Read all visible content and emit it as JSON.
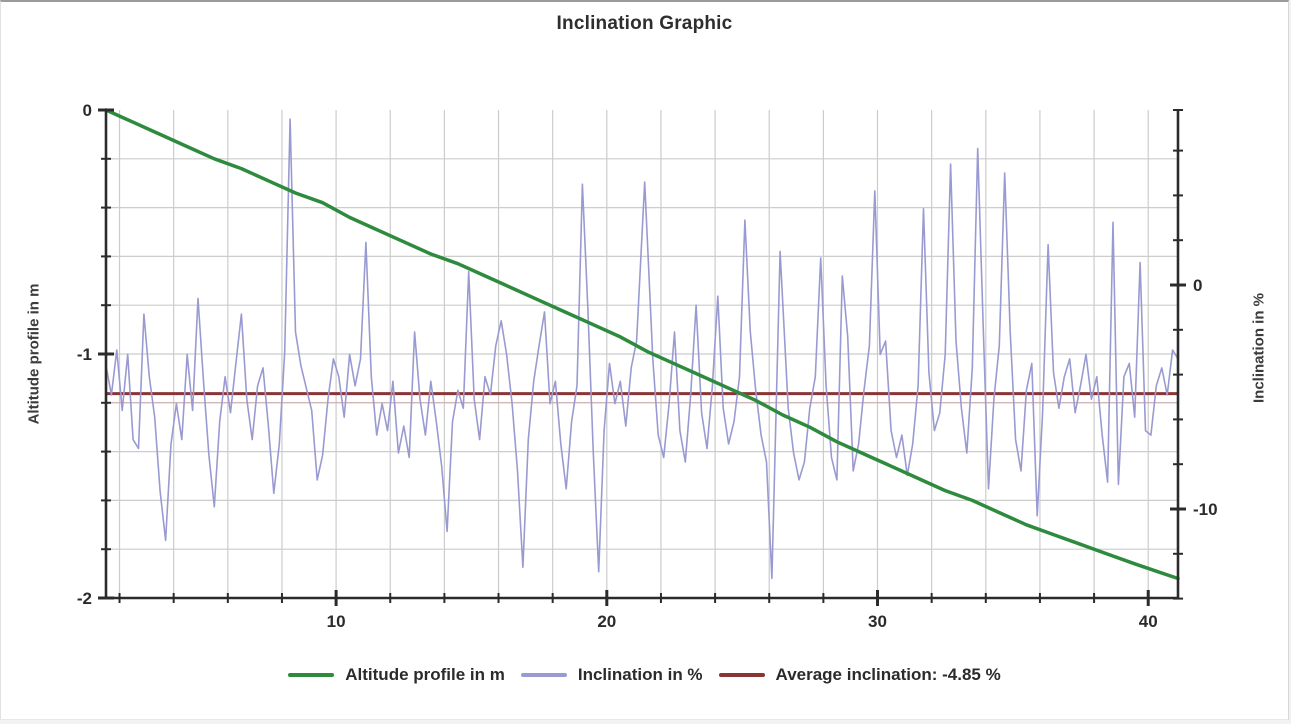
{
  "page": {
    "title": "Inclination Graphic"
  },
  "colors": {
    "altitude_line": "#2e8b3e",
    "inclination_line": "#9a9ad2",
    "average_line": "#8b3434",
    "grid": "#cccccc",
    "axis": "#2b2b2b",
    "text": "#2b2b2b"
  },
  "legend": {
    "items": [
      {
        "name": "altitude",
        "label": "Altitude profile in m",
        "color": "#2e8b3e"
      },
      {
        "name": "inclination",
        "label": "Inclination in %",
        "color": "#9a9ad2"
      },
      {
        "name": "average",
        "label": "Average inclination: -4.85 %",
        "color": "#8b3434"
      }
    ]
  },
  "chart_data": {
    "type": "line",
    "title": "Inclination Graphic",
    "grid": true,
    "x_axis": {
      "label": "",
      "range": [
        1.5,
        41.1
      ],
      "major_ticks": [
        10,
        20,
        30,
        40
      ],
      "major_tick_labels": [
        "10",
        "20",
        "30",
        "40"
      ],
      "minor_tick_step": 2
    },
    "y_left": {
      "label": "Altitude profile in m",
      "range": [
        0,
        -2
      ],
      "major_ticks": [
        0,
        -1,
        -2
      ],
      "major_tick_labels": [
        "0",
        "-1",
        "-2"
      ],
      "minor_tick_step": 0.2
    },
    "y_right": {
      "label": "Inclination in %",
      "range": [
        7.9,
        -14
      ],
      "major_ticks": [
        0,
        -10
      ],
      "major_tick_labels": [
        "0",
        "-10"
      ],
      "minor_tick_step": 2
    },
    "average_inclination_pct": -4.85,
    "series": [
      {
        "name": "Altitude profile in m",
        "axis": "left",
        "color": "#2e8b3e",
        "width": 3.5,
        "points": [
          [
            1.5,
            0
          ],
          [
            2.5,
            -0.05
          ],
          [
            3.5,
            -0.1
          ],
          [
            4.5,
            -0.15
          ],
          [
            5.5,
            -0.2
          ],
          [
            6.5,
            -0.24
          ],
          [
            7.5,
            -0.29
          ],
          [
            8.5,
            -0.34
          ],
          [
            9.5,
            -0.38
          ],
          [
            10.5,
            -0.44
          ],
          [
            11.5,
            -0.49
          ],
          [
            12.5,
            -0.54
          ],
          [
            13.5,
            -0.59
          ],
          [
            14.5,
            -0.63
          ],
          [
            15.5,
            -0.68
          ],
          [
            16.5,
            -0.73
          ],
          [
            17.5,
            -0.78
          ],
          [
            18.5,
            -0.83
          ],
          [
            19.5,
            -0.88
          ],
          [
            20.5,
            -0.93
          ],
          [
            21.5,
            -0.99
          ],
          [
            22.5,
            -1.04
          ],
          [
            23.5,
            -1.09
          ],
          [
            24.5,
            -1.14
          ],
          [
            25.5,
            -1.19
          ],
          [
            26.5,
            -1.25
          ],
          [
            27.5,
            -1.3
          ],
          [
            28.5,
            -1.36
          ],
          [
            29.5,
            -1.41
          ],
          [
            30.5,
            -1.46
          ],
          [
            31.5,
            -1.51
          ],
          [
            32.5,
            -1.56
          ],
          [
            33.5,
            -1.6
          ],
          [
            34.5,
            -1.65
          ],
          [
            35.5,
            -1.7
          ],
          [
            36.5,
            -1.74
          ],
          [
            37.5,
            -1.78
          ],
          [
            38.5,
            -1.82
          ],
          [
            39.5,
            -1.86
          ],
          [
            40.3,
            -1.89
          ],
          [
            41.1,
            -1.92
          ]
        ]
      },
      {
        "name": "Inclination in %",
        "axis": "right",
        "color": "#9a9ad2",
        "width": 1.6,
        "points": [
          [
            1.5,
            -3.6
          ],
          [
            1.7,
            -4.9
          ],
          [
            1.9,
            -2.9
          ],
          [
            2.1,
            -5.6
          ],
          [
            2.3,
            -3.1
          ],
          [
            2.5,
            -6.9
          ],
          [
            2.7,
            -7.3
          ],
          [
            2.9,
            -1.3
          ],
          [
            3.1,
            -4.1
          ],
          [
            3.3,
            -5.9
          ],
          [
            3.5,
            -9.2
          ],
          [
            3.7,
            -11.4
          ],
          [
            3.9,
            -7.1
          ],
          [
            4.1,
            -5.3
          ],
          [
            4.3,
            -6.9
          ],
          [
            4.5,
            -3.1
          ],
          [
            4.7,
            -5.6
          ],
          [
            4.9,
            -0.6
          ],
          [
            5.1,
            -4.3
          ],
          [
            5.3,
            -7.6
          ],
          [
            5.5,
            -9.9
          ],
          [
            5.7,
            -6.1
          ],
          [
            5.9,
            -4.1
          ],
          [
            6.1,
            -5.7
          ],
          [
            6.3,
            -3.5
          ],
          [
            6.5,
            -1.3
          ],
          [
            6.7,
            -5.1
          ],
          [
            6.9,
            -6.9
          ],
          [
            7.1,
            -4.5
          ],
          [
            7.3,
            -3.7
          ],
          [
            7.5,
            -6.3
          ],
          [
            7.7,
            -9.3
          ],
          [
            7.9,
            -7.1
          ],
          [
            8.1,
            -3.0
          ],
          [
            8.3,
            7.4
          ],
          [
            8.5,
            -2.1
          ],
          [
            8.7,
            -3.6
          ],
          [
            8.9,
            -4.6
          ],
          [
            9.1,
            -5.6
          ],
          [
            9.3,
            -8.7
          ],
          [
            9.5,
            -7.6
          ],
          [
            9.7,
            -5.1
          ],
          [
            9.9,
            -3.3
          ],
          [
            10.1,
            -4.1
          ],
          [
            10.3,
            -5.9
          ],
          [
            10.5,
            -3.1
          ],
          [
            10.7,
            -4.5
          ],
          [
            10.9,
            -3.3
          ],
          [
            11.1,
            1.9
          ],
          [
            11.3,
            -4.1
          ],
          [
            11.5,
            -6.7
          ],
          [
            11.7,
            -5.3
          ],
          [
            11.9,
            -6.5
          ],
          [
            12.1,
            -4.3
          ],
          [
            12.3,
            -7.5
          ],
          [
            12.5,
            -6.3
          ],
          [
            12.7,
            -7.7
          ],
          [
            12.9,
            -2.1
          ],
          [
            13.1,
            -5.1
          ],
          [
            13.3,
            -6.7
          ],
          [
            13.5,
            -4.3
          ],
          [
            13.7,
            -6.1
          ],
          [
            13.9,
            -8.1
          ],
          [
            14.1,
            -11.0
          ],
          [
            14.3,
            -6.1
          ],
          [
            14.5,
            -4.7
          ],
          [
            14.7,
            -5.5
          ],
          [
            14.9,
            0.6
          ],
          [
            15.1,
            -5.1
          ],
          [
            15.3,
            -6.9
          ],
          [
            15.5,
            -4.1
          ],
          [
            15.7,
            -4.9
          ],
          [
            15.9,
            -2.7
          ],
          [
            16.1,
            -1.6
          ],
          [
            16.3,
            -3.1
          ],
          [
            16.5,
            -5.3
          ],
          [
            16.7,
            -8.3
          ],
          [
            16.9,
            -12.6
          ],
          [
            17.1,
            -6.9
          ],
          [
            17.3,
            -4.3
          ],
          [
            17.5,
            -2.7
          ],
          [
            17.7,
            -1.2
          ],
          [
            17.9,
            -5.3
          ],
          [
            18.1,
            -4.3
          ],
          [
            18.3,
            -7.1
          ],
          [
            18.5,
            -9.1
          ],
          [
            18.7,
            -6.1
          ],
          [
            18.9,
            -4.5
          ],
          [
            19.1,
            4.5
          ],
          [
            19.3,
            -1.1
          ],
          [
            19.5,
            -7.5
          ],
          [
            19.7,
            -12.8
          ],
          [
            19.9,
            -6.5
          ],
          [
            20.1,
            -3.5
          ],
          [
            20.3,
            -5.3
          ],
          [
            20.5,
            -4.3
          ],
          [
            20.7,
            -6.3
          ],
          [
            20.9,
            -3.7
          ],
          [
            21.1,
            -2.5
          ],
          [
            21.4,
            4.6
          ],
          [
            21.7,
            -3.3
          ],
          [
            21.9,
            -6.7
          ],
          [
            22.1,
            -7.7
          ],
          [
            22.3,
            -5.3
          ],
          [
            22.5,
            -2.1
          ],
          [
            22.7,
            -6.5
          ],
          [
            22.9,
            -7.9
          ],
          [
            23.1,
            -4.9
          ],
          [
            23.3,
            -0.9
          ],
          [
            23.5,
            -5.7
          ],
          [
            23.7,
            -7.3
          ],
          [
            23.9,
            -4.5
          ],
          [
            24.1,
            -0.5
          ],
          [
            24.3,
            -5.5
          ],
          [
            24.5,
            -7.1
          ],
          [
            24.7,
            -6.1
          ],
          [
            24.9,
            -4.1
          ],
          [
            25.1,
            2.9
          ],
          [
            25.3,
            -2.1
          ],
          [
            25.5,
            -4.7
          ],
          [
            25.7,
            -6.7
          ],
          [
            25.9,
            -7.9
          ],
          [
            26.1,
            -13.1
          ],
          [
            26.4,
            1.5
          ],
          [
            26.7,
            -5.5
          ],
          [
            26.9,
            -7.5
          ],
          [
            27.1,
            -8.7
          ],
          [
            27.3,
            -7.9
          ],
          [
            27.5,
            -5.5
          ],
          [
            27.7,
            -4.1
          ],
          [
            27.9,
            1.2
          ],
          [
            28.1,
            -4.5
          ],
          [
            28.3,
            -7.7
          ],
          [
            28.5,
            -8.7
          ],
          [
            28.7,
            0.4
          ],
          [
            28.9,
            -2.3
          ],
          [
            29.1,
            -8.3
          ],
          [
            29.3,
            -7.1
          ],
          [
            29.5,
            -4.7
          ],
          [
            29.7,
            -2.7
          ],
          [
            29.9,
            4.2
          ],
          [
            30.1,
            -3.1
          ],
          [
            30.3,
            -2.5
          ],
          [
            30.5,
            -6.5
          ],
          [
            30.7,
            -7.7
          ],
          [
            30.9,
            -6.7
          ],
          [
            31.1,
            -8.5
          ],
          [
            31.3,
            -7.1
          ],
          [
            31.5,
            -4.5
          ],
          [
            31.7,
            3.4
          ],
          [
            31.9,
            -3.9
          ],
          [
            32.1,
            -6.5
          ],
          [
            32.3,
            -5.7
          ],
          [
            32.5,
            -3.1
          ],
          [
            32.7,
            5.4
          ],
          [
            32.9,
            -2.5
          ],
          [
            33.1,
            -5.5
          ],
          [
            33.3,
            -7.5
          ],
          [
            33.5,
            -3.7
          ],
          [
            33.7,
            6.1
          ],
          [
            33.9,
            -1.7
          ],
          [
            34.1,
            -9.1
          ],
          [
            34.3,
            -5.1
          ],
          [
            34.5,
            -2.7
          ],
          [
            34.7,
            5.0
          ],
          [
            34.9,
            -2.1
          ],
          [
            35.1,
            -6.9
          ],
          [
            35.3,
            -8.3
          ],
          [
            35.5,
            -4.7
          ],
          [
            35.7,
            -3.5
          ],
          [
            35.9,
            -10.3
          ],
          [
            36.1,
            -5.7
          ],
          [
            36.3,
            1.8
          ],
          [
            36.5,
            -3.9
          ],
          [
            36.7,
            -5.5
          ],
          [
            36.9,
            -4.1
          ],
          [
            37.1,
            -3.3
          ],
          [
            37.3,
            -5.7
          ],
          [
            37.5,
            -4.5
          ],
          [
            37.7,
            -3.1
          ],
          [
            37.9,
            -5.1
          ],
          [
            38.1,
            -4.1
          ],
          [
            38.3,
            -6.7
          ],
          [
            38.5,
            -8.8
          ],
          [
            38.7,
            2.8
          ],
          [
            38.9,
            -8.9
          ],
          [
            39.1,
            -4.1
          ],
          [
            39.3,
            -3.5
          ],
          [
            39.5,
            -5.9
          ],
          [
            39.7,
            1.0
          ],
          [
            39.9,
            -6.5
          ],
          [
            40.1,
            -6.7
          ],
          [
            40.3,
            -4.5
          ],
          [
            40.5,
            -3.7
          ],
          [
            40.7,
            -4.9
          ],
          [
            40.9,
            -2.9
          ],
          [
            41.1,
            -3.3
          ]
        ]
      },
      {
        "name": "Average inclination: -4.85 %",
        "axis": "right",
        "color": "#8b3434",
        "width": 3,
        "constant_value": -4.85
      }
    ]
  }
}
